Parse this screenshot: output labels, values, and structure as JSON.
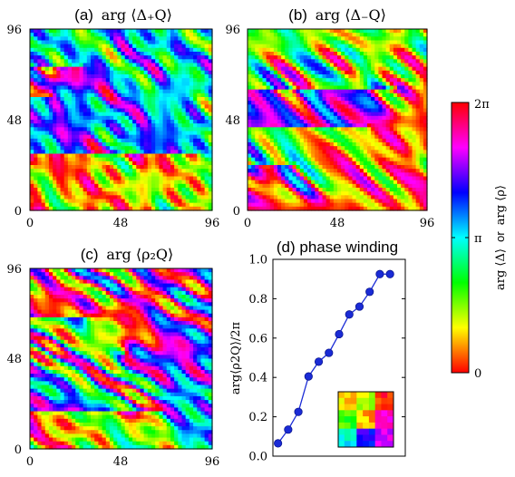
{
  "chart_data": [
    {
      "type": "heatmap",
      "panel": "(a)",
      "title": "(a) arg ⟨Δ+Q⟩",
      "title_prefix": "(a)",
      "title_math": "arg ⟨Δ₊Q⟩",
      "xticks": [
        "0",
        "48",
        "96"
      ],
      "yticks": [
        "0",
        "48",
        "96"
      ],
      "xlim": [
        0,
        96
      ],
      "ylim": [
        0,
        96
      ],
      "colormap": "hsv",
      "dominant_phase": "green/yellow with blue-magenta vortices",
      "seed": 11,
      "base_hue": 0.33,
      "vortices": [
        {
          "x": 12,
          "y": 60,
          "winding": 1
        },
        {
          "x": 29,
          "y": 77,
          "winding": -1
        },
        {
          "x": 88,
          "y": 31,
          "winding": 1
        }
      ]
    },
    {
      "type": "heatmap",
      "panel": "(b)",
      "title": "(b) arg ⟨Δ−Q⟩",
      "title_prefix": "(b)",
      "title_math": "arg ⟨Δ₋Q⟩",
      "xticks": [
        "0",
        "48",
        "96"
      ],
      "yticks": [
        "0",
        "48",
        "96"
      ],
      "xlim": [
        0,
        96
      ],
      "ylim": [
        0,
        96
      ],
      "colormap": "hsv",
      "dominant_phase": "red/yellow/green with blue-magenta region",
      "seed": 23,
      "base_hue": 0.12,
      "vortices": [
        {
          "x": 25,
          "y": 25,
          "winding": 1
        },
        {
          "x": 65,
          "y": 45,
          "winding": -1
        },
        {
          "x": 80,
          "y": 65,
          "winding": 1
        }
      ]
    },
    {
      "type": "heatmap",
      "panel": "(c)",
      "title": "(c) arg ⟨ρ2Q⟩",
      "title_prefix": "(c)",
      "title_math": "arg ⟨ρ₂Q⟩",
      "xticks": [
        "0",
        "48",
        "96"
      ],
      "yticks": [
        "0",
        "48",
        "96"
      ],
      "xlim": [
        0,
        96
      ],
      "ylim": [
        0,
        96
      ],
      "colormap": "hsv",
      "dominant_phase": "mixed, all phases",
      "seed": 37,
      "base_hue": 0.6,
      "vortices": [
        {
          "x": 50,
          "y": 50,
          "winding": 2
        },
        {
          "x": 30,
          "y": 70,
          "winding": -1
        },
        {
          "x": 70,
          "y": 20,
          "winding": 1
        }
      ]
    },
    {
      "type": "line",
      "panel": "(d)",
      "title": "(d) phase winding",
      "ylabel": "arg⟨ρ2Q⟩/2π",
      "ylim": [
        0.0,
        1.0
      ],
      "yticks": [
        "0.0",
        "0.2",
        "0.4",
        "0.6",
        "0.8",
        "1.0"
      ],
      "xlim": [
        0,
        13
      ],
      "x": [
        0.5,
        1.5,
        2.5,
        3.5,
        4.5,
        5.5,
        6.5,
        7.5,
        8.5,
        9.5,
        10.5,
        11.5
      ],
      "y": [
        0.065,
        0.135,
        0.225,
        0.405,
        0.48,
        0.525,
        0.62,
        0.72,
        0.76,
        0.835,
        0.925,
        0.925
      ],
      "color": "#1a2bd6",
      "marker": "circle",
      "inset": "3x3 blocky phase map",
      "inset_hues": [
        0.15,
        0.22,
        0.02,
        0.3,
        0.12,
        0.88,
        0.5,
        0.68,
        0.82
      ]
    }
  ],
  "colorbar": {
    "label": "arg ⟨Δ⟩ or arg ⟨ρ⟩",
    "label_part1": "arg ⟨Δ⟩",
    "label_or": "or",
    "label_part2": "arg ⟨ρ⟩",
    "ticks": [
      "0",
      "π",
      "2π"
    ],
    "range": [
      0,
      6.2832
    ]
  }
}
